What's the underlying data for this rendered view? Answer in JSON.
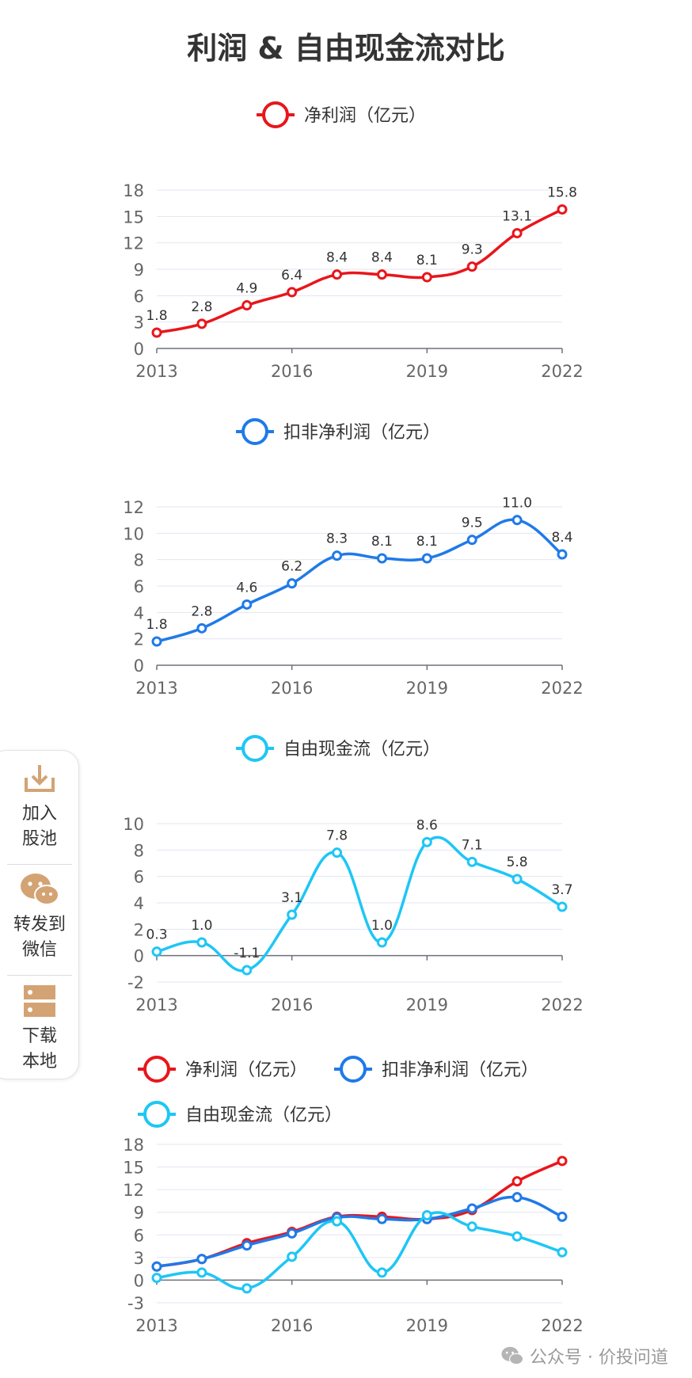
{
  "title": "利润 & 自由现金流对比",
  "colors": {
    "profit": "#e8161b",
    "deducted": "#1f7ae8",
    "fcf": "#1ec6f5",
    "grid": "#e3e6f0",
    "axis": "#6e7079"
  },
  "chart_data": [
    {
      "type": "line",
      "x": [
        2013,
        2014,
        2015,
        2016,
        2017,
        2018,
        2019,
        2020,
        2021,
        2022
      ],
      "x_ticks": [
        "2013",
        "2016",
        "2019",
        "2022"
      ],
      "y_ticks": [
        "0",
        "3",
        "6",
        "9",
        "12",
        "15",
        "18"
      ],
      "ylim": [
        0,
        18
      ],
      "series": [
        {
          "name": "净利润（亿元）",
          "key": "profit",
          "values": [
            1.8,
            2.8,
            4.9,
            6.4,
            8.4,
            8.4,
            8.1,
            9.3,
            13.1,
            15.8
          ],
          "labels": [
            "1.8",
            "2.8",
            "4.9",
            "6.4",
            "8.4",
            "8.4",
            "8.1",
            "9.3",
            "13.1",
            "15.8"
          ]
        }
      ]
    },
    {
      "type": "line",
      "x": [
        2013,
        2014,
        2015,
        2016,
        2017,
        2018,
        2019,
        2020,
        2021,
        2022
      ],
      "x_ticks": [
        "2013",
        "2016",
        "2019",
        "2022"
      ],
      "y_ticks": [
        "0",
        "2",
        "4",
        "6",
        "8",
        "10",
        "12"
      ],
      "ylim": [
        0,
        12
      ],
      "series": [
        {
          "name": "扣非净利润（亿元）",
          "key": "deducted",
          "values": [
            1.8,
            2.8,
            4.6,
            6.2,
            8.3,
            8.1,
            8.1,
            9.5,
            11.0,
            8.4
          ],
          "labels": [
            "1.8",
            "2.8",
            "4.6",
            "6.2",
            "8.3",
            "8.1",
            "8.1",
            "9.5",
            "11.0",
            "8.4"
          ]
        }
      ]
    },
    {
      "type": "line",
      "x": [
        2013,
        2014,
        2015,
        2016,
        2017,
        2018,
        2019,
        2020,
        2021,
        2022
      ],
      "x_ticks": [
        "2013",
        "2016",
        "2019",
        "2022"
      ],
      "y_ticks": [
        "-2",
        "0",
        "2",
        "4",
        "6",
        "8",
        "10"
      ],
      "ylim": [
        -2,
        10
      ],
      "series": [
        {
          "name": "自由现金流（亿元）",
          "key": "fcf",
          "values": [
            0.3,
            1.0,
            -1.1,
            3.1,
            7.8,
            1.0,
            8.6,
            7.1,
            5.8,
            3.7
          ],
          "labels": [
            "0.3",
            "1.0",
            "-1.1",
            "3.1",
            "7.8",
            "1.0",
            "8.6",
            "7.1",
            "5.8",
            "3.7"
          ]
        }
      ]
    },
    {
      "type": "line",
      "x": [
        2013,
        2014,
        2015,
        2016,
        2017,
        2018,
        2019,
        2020,
        2021,
        2022
      ],
      "x_ticks": [
        "2013",
        "2016",
        "2019",
        "2022"
      ],
      "y_ticks": [
        "-3",
        "0",
        "3",
        "6",
        "9",
        "12",
        "15",
        "18"
      ],
      "ylim": [
        -3,
        18
      ],
      "series": [
        {
          "name": "净利润（亿元）",
          "key": "profit",
          "values": [
            1.8,
            2.8,
            4.9,
            6.4,
            8.4,
            8.4,
            8.1,
            9.3,
            13.1,
            15.8
          ]
        },
        {
          "name": "扣非净利润（亿元）",
          "key": "deducted",
          "values": [
            1.8,
            2.8,
            4.6,
            6.2,
            8.3,
            8.1,
            8.1,
            9.5,
            11.0,
            8.4
          ]
        },
        {
          "name": "自由现金流（亿元）",
          "key": "fcf",
          "values": [
            0.3,
            1.0,
            -1.1,
            3.1,
            7.8,
            1.0,
            8.6,
            7.1,
            5.8,
            3.7
          ]
        }
      ]
    }
  ],
  "sidebar": {
    "add": {
      "label1": "加入",
      "label2": "股池",
      "icon": "download-tray-icon"
    },
    "share": {
      "label1": "转发到",
      "label2": "微信",
      "icon": "wechat-icon"
    },
    "download": {
      "label1": "下载",
      "label2": "本地",
      "icon": "storage-icon"
    }
  },
  "watermark": {
    "brand": "公众号 · 价投问道",
    "icon": "wechat-icon"
  }
}
